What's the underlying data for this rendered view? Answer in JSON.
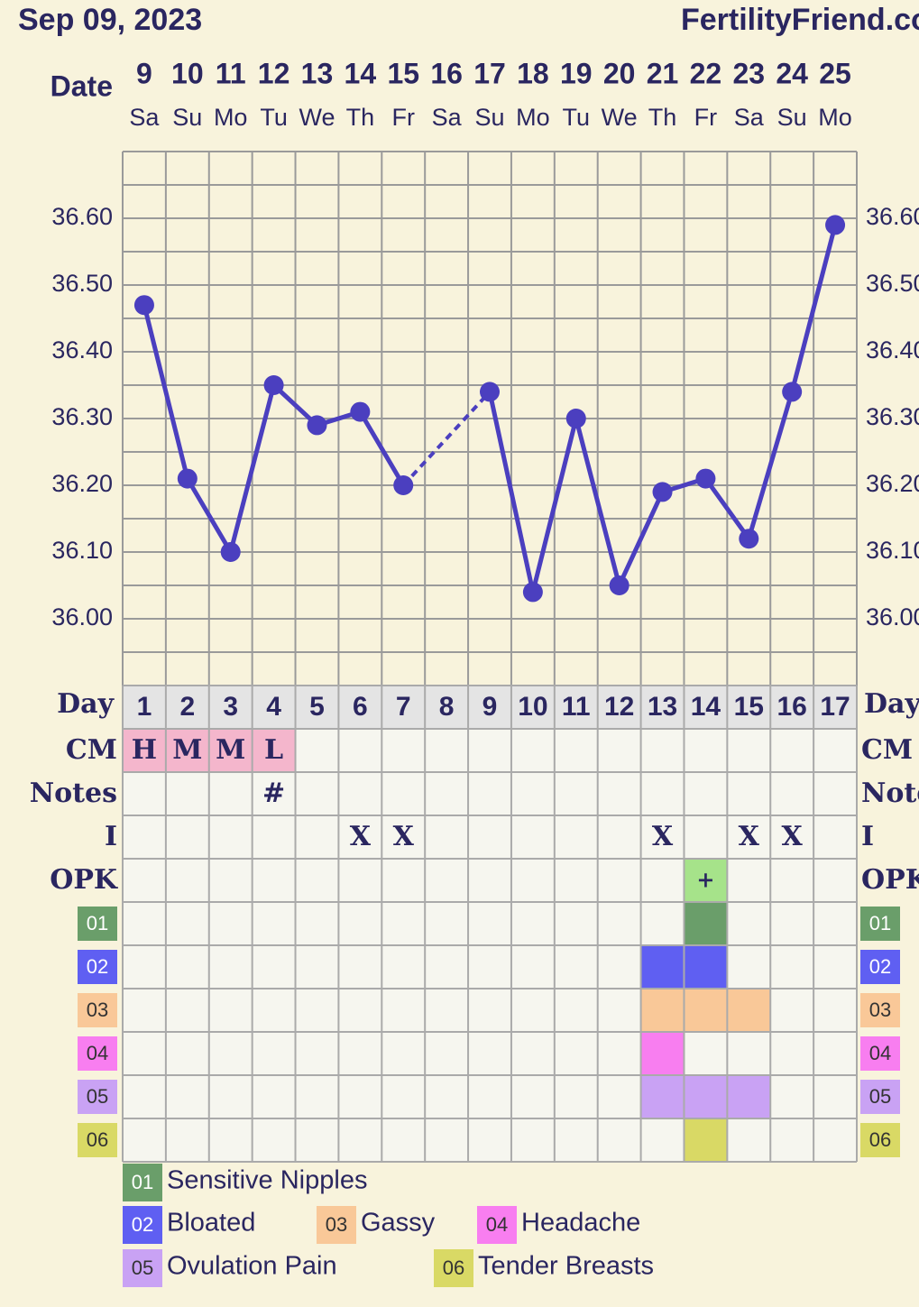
{
  "header": {
    "date": "Sep 09, 2023",
    "site": "FertilityFriend.com"
  },
  "chart_data": {
    "type": "line",
    "x_label": "Date",
    "categories": [
      "9",
      "10",
      "11",
      "12",
      "13",
      "14",
      "15",
      "16",
      "17",
      "18",
      "19",
      "20",
      "21",
      "22",
      "23",
      "24",
      "25"
    ],
    "weekdays": [
      "Sa",
      "Su",
      "Mo",
      "Tu",
      "We",
      "Th",
      "Fr",
      "Sa",
      "Su",
      "Mo",
      "Tu",
      "We",
      "Th",
      "Fr",
      "Sa",
      "Su",
      "Mo"
    ],
    "series": [
      {
        "color": "#4b3fbf",
        "values": [
          36.47,
          36.21,
          36.1,
          36.35,
          36.29,
          36.31,
          36.2,
          null,
          36.34,
          36.04,
          36.3,
          36.05,
          36.19,
          36.21,
          36.12,
          36.34,
          36.59
        ]
      }
    ],
    "ylim": [
      35.9,
      36.7
    ],
    "yticks": [
      {
        "value": 36.0,
        "label": "36.00"
      },
      {
        "value": 36.1,
        "label": "36.10"
      },
      {
        "value": 36.2,
        "label": "36.20"
      },
      {
        "value": 36.3,
        "label": "36.30"
      },
      {
        "value": 36.4,
        "label": "36.40"
      },
      {
        "value": 36.5,
        "label": "36.50"
      },
      {
        "value": 36.6,
        "label": "36.60"
      }
    ],
    "grid_values": [
      35.9,
      35.95,
      36.0,
      36.05,
      36.1,
      36.15,
      36.2,
      36.25,
      36.3,
      36.35,
      36.4,
      36.45,
      36.5,
      36.55,
      36.6,
      36.65,
      36.7
    ],
    "grid": true
  },
  "table": {
    "day_label": "Day",
    "days": [
      1,
      2,
      3,
      4,
      5,
      6,
      7,
      8,
      9,
      10,
      11,
      12,
      13,
      14,
      15,
      16,
      17
    ],
    "rows": [
      {
        "label": "CM",
        "color": "#f4b6cc",
        "cells": [
          "H",
          "M",
          "M",
          "L",
          null,
          null,
          null,
          null,
          null,
          null,
          null,
          null,
          null,
          null,
          null,
          null,
          null
        ]
      },
      {
        "label": "Notes",
        "cells": [
          null,
          null,
          null,
          "#",
          null,
          null,
          null,
          null,
          null,
          null,
          null,
          null,
          null,
          null,
          null,
          null,
          null
        ]
      },
      {
        "label": "I",
        "cells": [
          null,
          null,
          null,
          null,
          null,
          "X",
          "X",
          null,
          null,
          null,
          null,
          null,
          "X",
          null,
          "X",
          "X",
          null
        ]
      },
      {
        "label": "OPK",
        "color": "#a6e38a",
        "cells": [
          null,
          null,
          null,
          null,
          null,
          null,
          null,
          null,
          null,
          null,
          null,
          null,
          null,
          "+",
          null,
          null,
          null
        ]
      }
    ]
  },
  "symptoms": [
    {
      "code": "01",
      "name": "Sensitive Nipples",
      "color": "#6a9e6a",
      "marked": [
        false,
        false,
        false,
        false,
        false,
        false,
        false,
        false,
        false,
        false,
        false,
        false,
        false,
        true,
        false,
        false,
        false
      ]
    },
    {
      "code": "02",
      "name": "Bloated",
      "color": "#5f5ff2",
      "marked": [
        false,
        false,
        false,
        false,
        false,
        false,
        false,
        false,
        false,
        false,
        false,
        false,
        true,
        true,
        false,
        false,
        false
      ]
    },
    {
      "code": "03",
      "name": "Gassy",
      "color": "#f9c898",
      "marked": [
        false,
        false,
        false,
        false,
        false,
        false,
        false,
        false,
        false,
        false,
        false,
        false,
        true,
        true,
        true,
        false,
        false
      ]
    },
    {
      "code": "04",
      "name": "Headache",
      "color": "#f87ef0",
      "marked": [
        false,
        false,
        false,
        false,
        false,
        false,
        false,
        false,
        false,
        false,
        false,
        false,
        true,
        false,
        false,
        false,
        false
      ]
    },
    {
      "code": "05",
      "name": "Ovulation Pain",
      "color": "#c9a2f4",
      "marked": [
        false,
        false,
        false,
        false,
        false,
        false,
        false,
        false,
        false,
        false,
        false,
        false,
        true,
        true,
        true,
        false,
        false
      ]
    },
    {
      "code": "06",
      "name": "Tender Breasts",
      "color": "#d9d965",
      "marked": [
        false,
        false,
        false,
        false,
        false,
        false,
        false,
        false,
        false,
        false,
        false,
        false,
        false,
        true,
        false,
        false,
        false
      ]
    }
  ]
}
